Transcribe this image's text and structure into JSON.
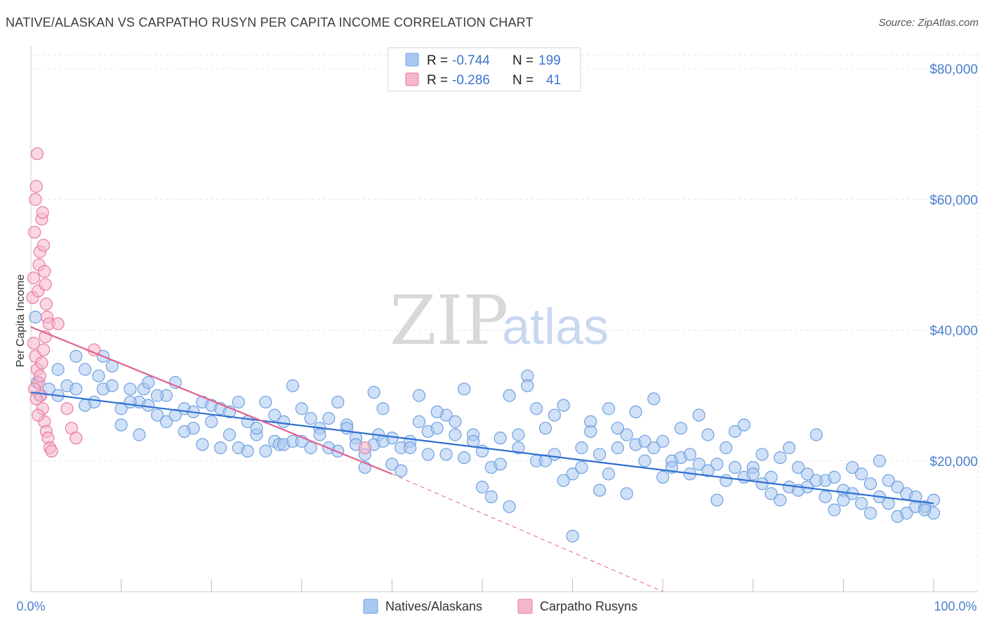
{
  "header": {
    "title": "NATIVE/ALASKAN VS CARPATHO RUSYN PER CAPITA INCOME CORRELATION CHART",
    "source": "Source: ZipAtlas.com"
  },
  "watermark": {
    "zip": "ZIP",
    "atlas": "atlas"
  },
  "legend": {
    "rows": [
      {
        "r_label": "R = ",
        "r_value": "-0.744",
        "n_label": "N = ",
        "n_value": "199",
        "color": "#a9c8f0"
      },
      {
        "r_label": "R = ",
        "r_value": "-0.286",
        "n_label": "N = ",
        "n_value": "41",
        "color": "#f6b6cb"
      }
    ]
  },
  "chart_data": {
    "type": "scatter",
    "title": "NATIVE/ALASKAN VS CARPATHO RUSYN PER CAPITA INCOME CORRELATION CHART",
    "xlabel": "",
    "ylabel": "Per Capita Income",
    "xlim": [
      0,
      100
    ],
    "ylim": [
      0,
      80000
    ],
    "x_tick_labels": [
      "0.0%",
      "100.0%"
    ],
    "y_ticks": [
      20000,
      40000,
      60000,
      80000
    ],
    "y_tick_labels": [
      "$20,000",
      "$40,000",
      "$60,000",
      "$80,000"
    ],
    "grid": true,
    "legend_position": "bottom-center",
    "series": [
      {
        "name": "Natives/Alaskans",
        "color": "#6fa0e0",
        "fill": "#a9c8f0",
        "trend": {
          "x": [
            0,
            100
          ],
          "y": [
            30500,
            13500
          ],
          "color": "#2f6fd0"
        },
        "points": [
          [
            0.5,
            42000
          ],
          [
            0.7,
            32000
          ],
          [
            1,
            30000
          ],
          [
            2,
            31000
          ],
          [
            3,
            30000
          ],
          [
            4,
            31500
          ],
          [
            5,
            31000
          ],
          [
            6,
            34000
          ],
          [
            7,
            29000
          ],
          [
            7.5,
            33000
          ],
          [
            8,
            31000
          ],
          [
            9,
            34500
          ],
          [
            10,
            28000
          ],
          [
            11,
            31000
          ],
          [
            12,
            29000
          ],
          [
            12.5,
            31000
          ],
          [
            13,
            28500
          ],
          [
            14,
            27000
          ],
          [
            15,
            30000
          ],
          [
            16,
            32000
          ],
          [
            17,
            28000
          ],
          [
            18,
            25000
          ],
          [
            19,
            29000
          ],
          [
            20,
            28500
          ],
          [
            21,
            28000
          ],
          [
            22,
            24000
          ],
          [
            23,
            29000
          ],
          [
            24,
            26000
          ],
          [
            25,
            24000
          ],
          [
            26,
            29000
          ],
          [
            27,
            23000
          ],
          [
            27.5,
            22500
          ],
          [
            28,
            22500
          ],
          [
            29,
            23000
          ],
          [
            30,
            23000
          ],
          [
            31,
            22000
          ],
          [
            32,
            25000
          ],
          [
            33,
            22000
          ],
          [
            34,
            29000
          ],
          [
            35,
            25500
          ],
          [
            36,
            23500
          ],
          [
            37,
            21000
          ],
          [
            38,
            22500
          ],
          [
            38.5,
            24000
          ],
          [
            39,
            28000
          ],
          [
            40,
            23500
          ],
          [
            41,
            22000
          ],
          [
            42,
            23000
          ],
          [
            43,
            30000
          ],
          [
            44,
            24500
          ],
          [
            45,
            25000
          ],
          [
            46,
            27000
          ],
          [
            47,
            26000
          ],
          [
            48,
            31000
          ],
          [
            49,
            24000
          ],
          [
            50,
            21500
          ],
          [
            51,
            19000
          ],
          [
            52,
            23500
          ],
          [
            53,
            30000
          ],
          [
            54,
            24000
          ],
          [
            55,
            33000
          ],
          [
            56,
            20000
          ],
          [
            57,
            25000
          ],
          [
            58,
            27000
          ],
          [
            59,
            28500
          ],
          [
            60,
            18000
          ],
          [
            61,
            22000
          ],
          [
            62,
            26000
          ],
          [
            63,
            21000
          ],
          [
            64,
            28000
          ],
          [
            65,
            25000
          ],
          [
            66,
            24000
          ],
          [
            67,
            22500
          ],
          [
            68,
            20000
          ],
          [
            69,
            29500
          ],
          [
            70,
            23000
          ],
          [
            71,
            20000
          ],
          [
            72,
            25000
          ],
          [
            73,
            18000
          ],
          [
            74,
            27000
          ],
          [
            75,
            24000
          ],
          [
            76,
            19500
          ],
          [
            77,
            17000
          ],
          [
            78,
            24500
          ],
          [
            79,
            25500
          ],
          [
            80,
            19000
          ],
          [
            81,
            21000
          ],
          [
            82,
            17500
          ],
          [
            83,
            20500
          ],
          [
            84,
            22000
          ],
          [
            85,
            19000
          ],
          [
            86,
            16000
          ],
          [
            87,
            24000
          ],
          [
            88,
            17000
          ],
          [
            89,
            17500
          ],
          [
            90,
            15500
          ],
          [
            91,
            19000
          ],
          [
            92,
            18000
          ],
          [
            93,
            16500
          ],
          [
            94,
            20000
          ],
          [
            95,
            17000
          ],
          [
            96,
            16000
          ],
          [
            97,
            15000
          ],
          [
            98,
            14500
          ],
          [
            99,
            13000
          ],
          [
            100,
            12000
          ],
          [
            3,
            34000
          ],
          [
            5,
            36000
          ],
          [
            6,
            28500
          ],
          [
            8,
            36000
          ],
          [
            9,
            31500
          ],
          [
            10,
            25500
          ],
          [
            11,
            29000
          ],
          [
            12,
            24000
          ],
          [
            13,
            32000
          ],
          [
            14,
            30000
          ],
          [
            15,
            26000
          ],
          [
            16,
            27000
          ],
          [
            17,
            24500
          ],
          [
            18,
            27500
          ],
          [
            19,
            22500
          ],
          [
            20,
            26000
          ],
          [
            21,
            22000
          ],
          [
            22,
            27500
          ],
          [
            23,
            22000
          ],
          [
            24,
            21500
          ],
          [
            25,
            25000
          ],
          [
            26,
            21500
          ],
          [
            27,
            27000
          ],
          [
            28,
            26000
          ],
          [
            29,
            31500
          ],
          [
            30,
            28000
          ],
          [
            31,
            26500
          ],
          [
            32,
            24000
          ],
          [
            33,
            26500
          ],
          [
            34,
            21500
          ],
          [
            35,
            25000
          ],
          [
            36,
            22500
          ],
          [
            37,
            19000
          ],
          [
            38,
            30500
          ],
          [
            39,
            23000
          ],
          [
            40,
            19500
          ],
          [
            41,
            18500
          ],
          [
            42,
            22000
          ],
          [
            43,
            26000
          ],
          [
            44,
            21000
          ],
          [
            45,
            27500
          ],
          [
            46,
            21000
          ],
          [
            47,
            24000
          ],
          [
            48,
            20500
          ],
          [
            49,
            23000
          ],
          [
            50,
            16000
          ],
          [
            51,
            14500
          ],
          [
            52,
            19500
          ],
          [
            53,
            13000
          ],
          [
            54,
            22000
          ],
          [
            55,
            31500
          ],
          [
            56,
            28000
          ],
          [
            57,
            20000
          ],
          [
            58,
            21000
          ],
          [
            59,
            17000
          ],
          [
            60,
            8500
          ],
          [
            61,
            19000
          ],
          [
            62,
            24500
          ],
          [
            63,
            15500
          ],
          [
            64,
            18000
          ],
          [
            65,
            22000
          ],
          [
            66,
            15000
          ],
          [
            67,
            27500
          ],
          [
            68,
            23000
          ],
          [
            69,
            22000
          ],
          [
            70,
            17500
          ],
          [
            71,
            19000
          ],
          [
            72,
            20500
          ],
          [
            73,
            21000
          ],
          [
            74,
            19500
          ],
          [
            75,
            18500
          ],
          [
            76,
            14000
          ],
          [
            77,
            22000
          ],
          [
            78,
            19000
          ],
          [
            79,
            17500
          ],
          [
            80,
            18000
          ],
          [
            81,
            16500
          ],
          [
            82,
            15000
          ],
          [
            83,
            14000
          ],
          [
            84,
            16000
          ],
          [
            85,
            15500
          ],
          [
            86,
            18000
          ],
          [
            87,
            17000
          ],
          [
            88,
            14500
          ],
          [
            89,
            12500
          ],
          [
            90,
            14000
          ],
          [
            91,
            15000
          ],
          [
            92,
            13500
          ],
          [
            93,
            12000
          ],
          [
            94,
            14500
          ],
          [
            95,
            13500
          ],
          [
            96,
            11500
          ],
          [
            97,
            12000
          ],
          [
            98,
            13000
          ],
          [
            99,
            12500
          ],
          [
            100,
            14000
          ]
        ]
      },
      {
        "name": "Carpatho Rusyns",
        "color": "#e87aa0",
        "fill": "#f6b6cb",
        "trend": {
          "x": [
            0,
            40
          ],
          "y": [
            40500,
            18000
          ],
          "color": "#e06090",
          "dashed_extension_to": [
            70,
            0
          ]
        },
        "points": [
          [
            0.2,
            45000
          ],
          [
            0.3,
            48000
          ],
          [
            0.4,
            55000
          ],
          [
            0.5,
            60000
          ],
          [
            0.6,
            62000
          ],
          [
            0.7,
            67000
          ],
          [
            0.8,
            46000
          ],
          [
            0.9,
            50000
          ],
          [
            1,
            52000
          ],
          [
            1.2,
            57000
          ],
          [
            1.3,
            58000
          ],
          [
            1.4,
            53000
          ],
          [
            1.5,
            49000
          ],
          [
            1.6,
            47000
          ],
          [
            1.7,
            44000
          ],
          [
            1.8,
            42000
          ],
          [
            2,
            41000
          ],
          [
            0.3,
            38000
          ],
          [
            0.5,
            36000
          ],
          [
            0.7,
            34000
          ],
          [
            0.9,
            32000
          ],
          [
            1.1,
            30000
          ],
          [
            1.3,
            28000
          ],
          [
            1.5,
            26000
          ],
          [
            1.7,
            24500
          ],
          [
            1.9,
            23500
          ],
          [
            2.1,
            22000
          ],
          [
            2.3,
            21500
          ],
          [
            0.4,
            31000
          ],
          [
            0.6,
            29500
          ],
          [
            0.8,
            27000
          ],
          [
            1,
            33000
          ],
          [
            1.2,
            35000
          ],
          [
            1.4,
            37000
          ],
          [
            1.6,
            39000
          ],
          [
            3,
            41000
          ],
          [
            4,
            28000
          ],
          [
            4.5,
            25000
          ],
          [
            5,
            23500
          ],
          [
            7,
            37000
          ],
          [
            37,
            22000
          ]
        ]
      }
    ]
  },
  "bottom_legend": {
    "items": [
      {
        "label": "Natives/Alaskans",
        "color": "#a9c8f0"
      },
      {
        "label": "Carpatho Rusyns",
        "color": "#f6b6cb"
      }
    ]
  }
}
